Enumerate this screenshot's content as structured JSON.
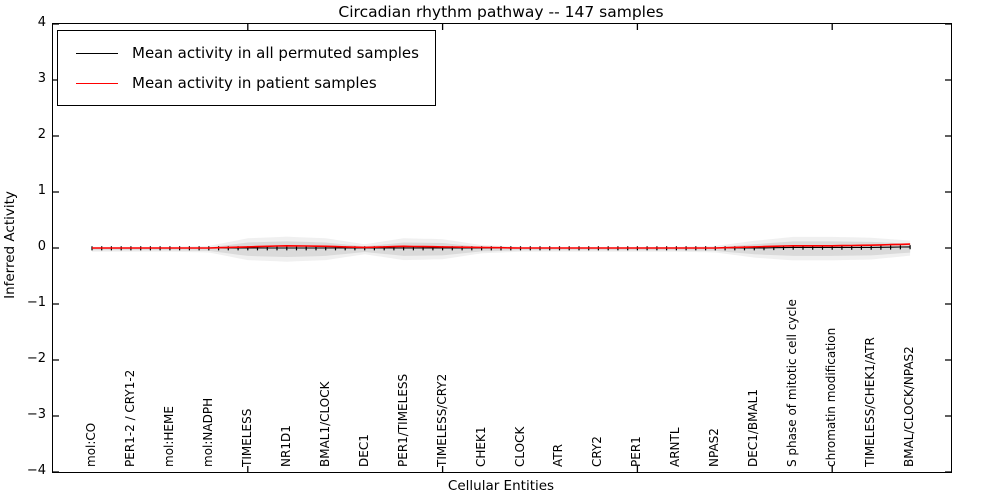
{
  "chart_data": {
    "type": "line",
    "title": "Circadian rhythm pathway -- 147 samples",
    "xlabel": "Cellular Entities",
    "ylabel": "Inferred Activity",
    "ylim": [
      -4,
      4
    ],
    "yticks": [
      "4",
      "3",
      "2",
      "1",
      "0",
      "−1",
      "−2",
      "−3",
      "−4"
    ],
    "x_major_tick_positions": [
      20,
      40,
      60,
      80
    ],
    "grid": false,
    "legend_position": "upper left",
    "n_points": 85,
    "points_per_label": 4,
    "categories": [
      "mol:CO",
      "PER1-2 / CRY1-2",
      "mol:HEME",
      "mol:NADPH",
      "TIMELESS",
      "NR1D1",
      "BMAL1/CLOCK",
      "DEC1",
      "PER1/TIMELESS",
      "TIMELESS/CRY2",
      "CHEK1",
      "CLOCK",
      "ATR",
      "CRY2",
      "PER1",
      "ARNTL",
      "NPAS2",
      "DEC1/BMAL1",
      "S phase of mitotic cell cycle",
      "chromatin modification",
      "TIMELESS/CHEK1/ATR",
      "BMAL/CLOCK/NPAS2"
    ],
    "series": [
      {
        "name": "Mean activity in all permuted samples",
        "color": "#000000",
        "marker": "vertical-dash",
        "values": [
          0,
          0,
          0,
          0,
          0,
          0,
          0,
          0,
          0,
          0,
          0,
          0,
          0,
          0,
          0,
          0,
          0,
          0,
          0.01,
          0.01,
          0.01,
          0.02
        ]
      },
      {
        "name": "Mean activity in patient samples",
        "color": "#ff0000",
        "marker": "none",
        "values": [
          0,
          0,
          0,
          0,
          0.02,
          0.04,
          0.03,
          0.01,
          0.03,
          0.02,
          0.01,
          0,
          0,
          0,
          0,
          0,
          0,
          0.02,
          0.04,
          0.04,
          0.05,
          0.07
        ]
      }
    ],
    "band": {
      "color": "#c9c9c9",
      "half_widths": [
        0.02,
        0.02,
        0.02,
        0.03,
        0.12,
        0.14,
        0.12,
        0.05,
        0.12,
        0.11,
        0.04,
        0.02,
        0.02,
        0.02,
        0.02,
        0.02,
        0.03,
        0.09,
        0.13,
        0.13,
        0.12,
        0.08
      ]
    }
  }
}
